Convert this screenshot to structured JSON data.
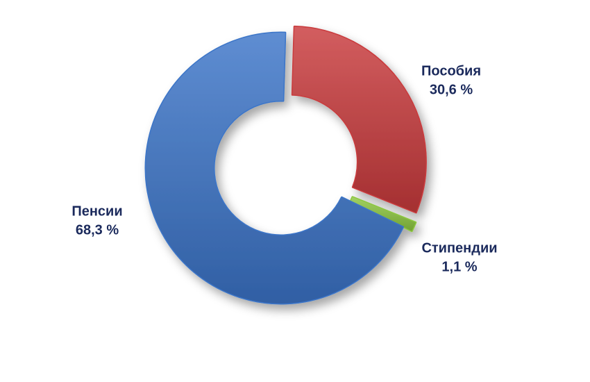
{
  "chart_data": {
    "type": "donut",
    "categories": [
      "Пособия",
      "Стипендии",
      "Пенсии"
    ],
    "values": [
      30.6,
      1.1,
      68.3
    ],
    "value_labels": [
      "30,6 %",
      "1,1 %",
      "68,3 %"
    ],
    "colors": [
      "#c93a3c",
      "#8cc63f",
      "#3b74c8"
    ]
  }
}
